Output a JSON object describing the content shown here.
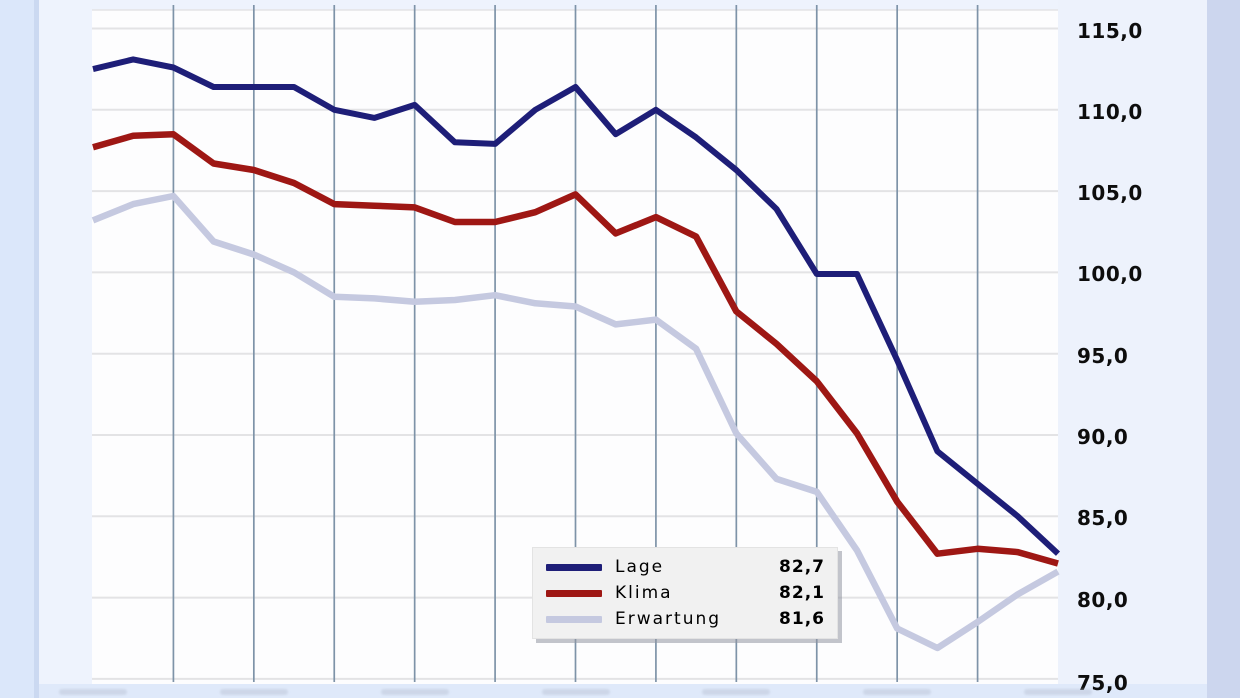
{
  "window": {
    "background": "#dfe9fa",
    "plot_background": "#fdfdfe",
    "left_accent_color": "#cbd9f1",
    "right_accent_color": "#ccd6ee",
    "gutter_color": "#eef3fd"
  },
  "chart_data": {
    "type": "line",
    "title": "",
    "grid": {
      "horizontal_color": "#e3e3e5",
      "vertical_color": "#7e93a8",
      "horizontal_on": true,
      "vertical_on": true,
      "vertical_every_n_points": 2
    },
    "x_axis": {
      "points": 25,
      "labels_cropped": true,
      "visible_label_stub_count": 7
    },
    "y_axis": {
      "side": "right",
      "min": 75,
      "max": 115,
      "step": 5,
      "ticks": [
        "115,0",
        "110,0",
        "105,0",
        "100,0",
        "95,0",
        "90,0",
        "85,0",
        "80,0",
        "75,0"
      ]
    },
    "series": [
      {
        "name": "Lage",
        "color": "#1e1e78",
        "values": [
          112.5,
          113.1,
          112.6,
          111.4,
          111.4,
          111.4,
          110.0,
          109.5,
          110.3,
          108.0,
          107.9,
          110.0,
          111.4,
          108.5,
          110.0,
          108.3,
          106.3,
          103.9,
          99.9,
          99.9,
          94.6,
          89.0,
          87.0,
          85.0,
          82.7
        ]
      },
      {
        "name": "Klima",
        "color": "#9e1714",
        "values": [
          107.7,
          108.4,
          108.5,
          106.7,
          106.3,
          105.5,
          104.2,
          104.1,
          104.0,
          103.1,
          103.1,
          103.7,
          104.8,
          102.4,
          103.4,
          102.2,
          97.6,
          95.6,
          93.3,
          90.1,
          85.9,
          82.7,
          83.0,
          82.8,
          82.1
        ]
      },
      {
        "name": "Erwartung",
        "color": "#c5c9e0",
        "values": [
          103.2,
          104.2,
          104.7,
          101.9,
          101.1,
          100.0,
          98.5,
          98.4,
          98.2,
          98.3,
          98.6,
          98.1,
          97.9,
          96.8,
          97.1,
          95.3,
          90.1,
          87.3,
          86.5,
          82.9,
          78.1,
          76.9,
          78.5,
          80.2,
          81.6
        ]
      }
    ],
    "legend": {
      "position": "bottom-center",
      "entries": [
        {
          "label": "Lage",
          "value": "82,7"
        },
        {
          "label": "Klima",
          "value": "82,1"
        },
        {
          "label": "Erwartung",
          "value": "81,6"
        }
      ]
    }
  }
}
